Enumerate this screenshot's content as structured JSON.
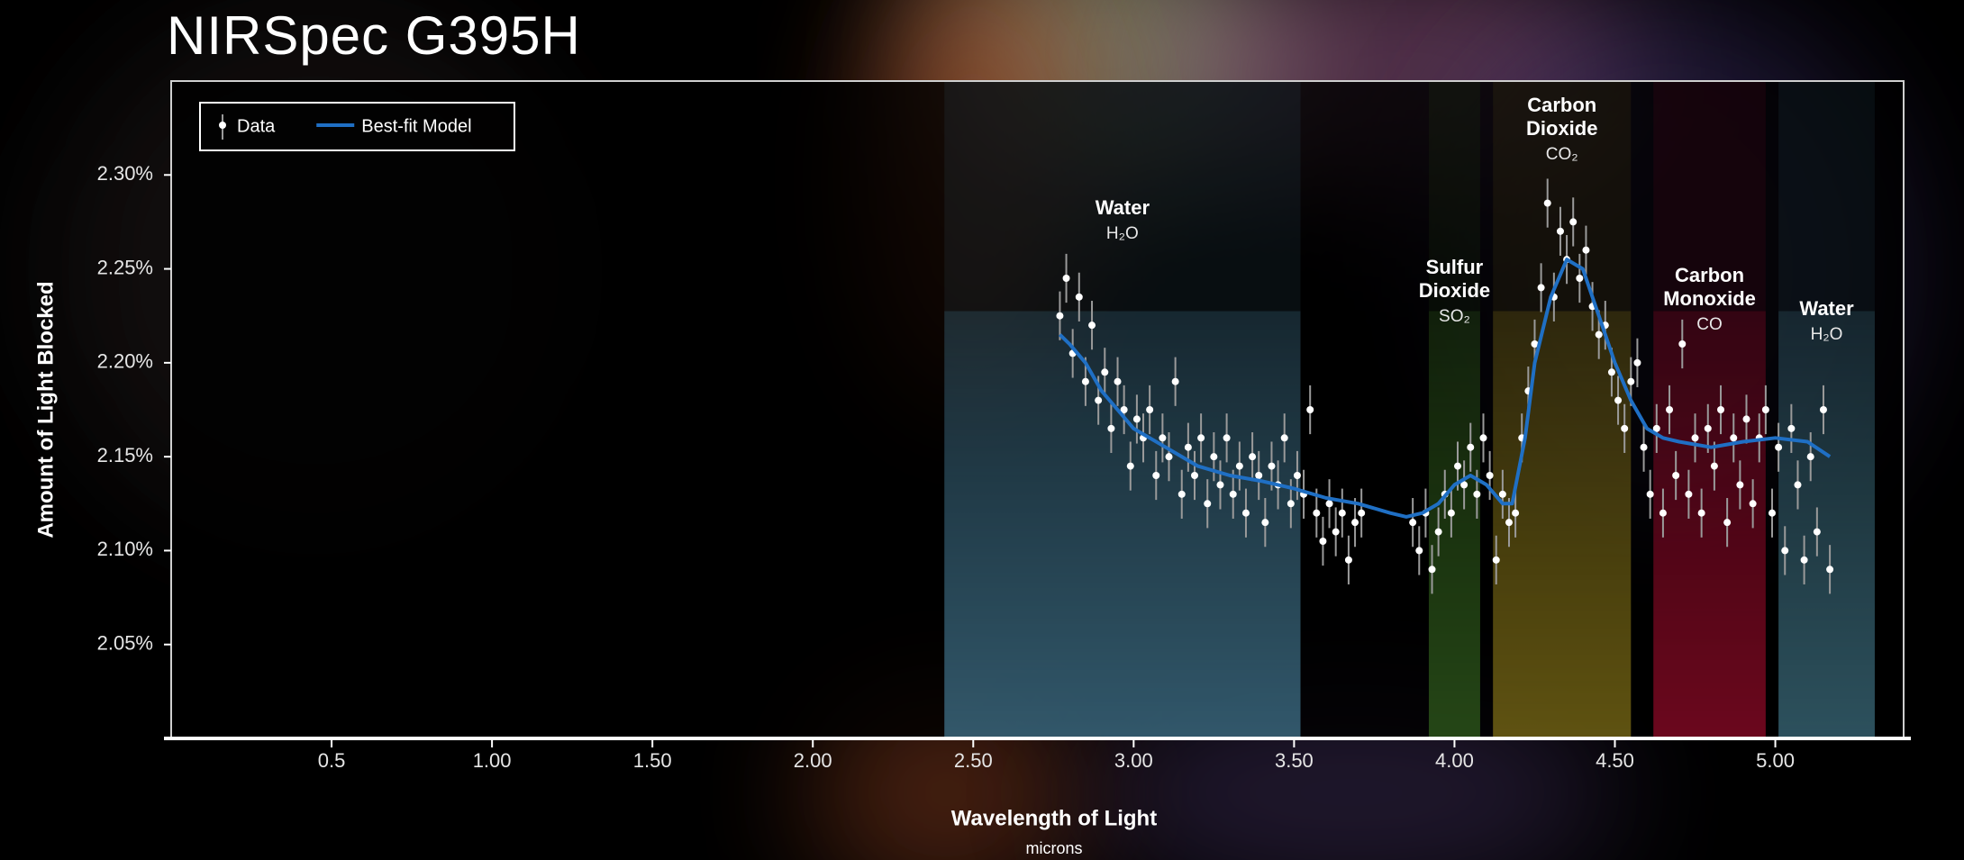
{
  "chart_data": {
    "type": "scatter",
    "title": "NIRSpec G395H",
    "ylabel": "Amount of Light Blocked",
    "xlabel": "Wavelength of Light",
    "xlabel_unit": "microns",
    "xlim": [
      0,
      5.4
    ],
    "ylim": [
      2.0,
      2.35
    ],
    "xticks": [
      0.5,
      {
        "value": 1,
        "label": "1.00"
      },
      {
        "value": 1.5,
        "label": "1.50"
      },
      {
        "value": 2,
        "label": "2.00"
      },
      {
        "value": 2.5,
        "label": "2.50"
      },
      {
        "value": 3,
        "label": "3.00"
      },
      {
        "value": 3.5,
        "label": "3.50"
      },
      {
        "value": 4,
        "label": "4.00"
      },
      {
        "value": 4.5,
        "label": "4.50"
      },
      {
        "value": 5,
        "label": "5.00"
      }
    ],
    "yticks": [
      {
        "value": 2.05,
        "label": "2.05%"
      },
      {
        "value": 2.1,
        "label": "2.10%"
      },
      {
        "value": 2.15,
        "label": "2.15%"
      },
      {
        "value": 2.2,
        "label": "2.20%"
      },
      {
        "value": 2.25,
        "label": "2.25%"
      },
      {
        "value": 2.3,
        "label": "2.30%"
      }
    ],
    "legend": "upper left",
    "bands": [
      {
        "range": [
          2.41,
          3.52
        ],
        "color": "#3f7088",
        "label": [
          "Water"
        ],
        "formula": "H₂O"
      },
      {
        "range": [
          3.92,
          4.08
        ],
        "color": "#2f5a1c",
        "label": [
          "Sulfur",
          "Dioxide"
        ],
        "formula": "SO₂"
      },
      {
        "range": [
          4.12,
          4.55
        ],
        "color": "#7a6a16",
        "label": [
          "Carbon",
          "Dioxide"
        ],
        "formula": "CO₂"
      },
      {
        "range": [
          4.62,
          4.97
        ],
        "color": "#8a0a26",
        "label": [
          "Carbon",
          "Monoxide"
        ],
        "formula": "CO"
      },
      {
        "range": [
          5.01,
          5.31
        ],
        "color": "#3a6878",
        "label": [
          "Water"
        ],
        "formula": "H₂O"
      }
    ],
    "series": [
      {
        "name": "Data",
        "type": "errorbar",
        "color": "#ffffff",
        "error": 0.013,
        "x": [
          2.77,
          2.79,
          2.81,
          2.83,
          2.85,
          2.87,
          2.89,
          2.91,
          2.93,
          2.95,
          2.97,
          2.99,
          3.01,
          3.03,
          3.05,
          3.07,
          3.09,
          3.11,
          3.13,
          3.15,
          3.17,
          3.19,
          3.21,
          3.23,
          3.25,
          3.27,
          3.29,
          3.31,
          3.33,
          3.35,
          3.37,
          3.39,
          3.41,
          3.43,
          3.45,
          3.47,
          3.49,
          3.51,
          3.53,
          3.55,
          3.57,
          3.59,
          3.61,
          3.63,
          3.65,
          3.67,
          3.69,
          3.71,
          3.87,
          3.89,
          3.91,
          3.93,
          3.95,
          3.97,
          3.99,
          4.01,
          4.03,
          4.05,
          4.07,
          4.09,
          4.11,
          4.13,
          4.15,
          4.17,
          4.19,
          4.21,
          4.23,
          4.25,
          4.27,
          4.29,
          4.31,
          4.33,
          4.35,
          4.37,
          4.39,
          4.41,
          4.43,
          4.45,
          4.47,
          4.49,
          4.51,
          4.53,
          4.55,
          4.57,
          4.59,
          4.61,
          4.63,
          4.65,
          4.67,
          4.69,
          4.71,
          4.73,
          4.75,
          4.77,
          4.79,
          4.81,
          4.83,
          4.85,
          4.87,
          4.89,
          4.91,
          4.93,
          4.95,
          4.97,
          4.99,
          5.01,
          5.03,
          5.05,
          5.07,
          5.09,
          5.11,
          5.13,
          5.15,
          5.17
        ],
        "values": [
          2.225,
          2.245,
          2.205,
          2.235,
          2.19,
          2.22,
          2.18,
          2.195,
          2.165,
          2.19,
          2.175,
          2.145,
          2.17,
          2.16,
          2.175,
          2.14,
          2.16,
          2.15,
          2.19,
          2.13,
          2.155,
          2.14,
          2.16,
          2.125,
          2.15,
          2.135,
          2.16,
          2.13,
          2.145,
          2.12,
          2.15,
          2.14,
          2.115,
          2.145,
          2.135,
          2.16,
          2.125,
          2.14,
          2.13,
          2.175,
          2.12,
          2.105,
          2.125,
          2.11,
          2.12,
          2.095,
          2.115,
          2.12,
          2.115,
          2.1,
          2.12,
          2.09,
          2.11,
          2.13,
          2.12,
          2.145,
          2.135,
          2.155,
          2.13,
          2.16,
          2.14,
          2.095,
          2.13,
          2.115,
          2.12,
          2.16,
          2.185,
          2.21,
          2.24,
          2.285,
          2.235,
          2.27,
          2.255,
          2.275,
          2.245,
          2.26,
          2.23,
          2.215,
          2.22,
          2.195,
          2.18,
          2.165,
          2.19,
          2.2,
          2.155,
          2.13,
          2.165,
          2.12,
          2.175,
          2.14,
          2.21,
          2.13,
          2.16,
          2.12,
          2.165,
          2.145,
          2.175,
          2.115,
          2.16,
          2.135,
          2.17,
          2.125,
          2.16,
          2.175,
          2.12,
          2.155,
          2.1,
          2.165,
          2.135,
          2.095,
          2.15,
          2.11,
          2.175,
          2.09
        ]
      },
      {
        "name": "Best-fit Model",
        "type": "line",
        "color": "#1f6fc4",
        "x": [
          2.77,
          2.8,
          2.85,
          2.9,
          2.95,
          3.0,
          3.05,
          3.1,
          3.2,
          3.3,
          3.4,
          3.5,
          3.6,
          3.7,
          3.8,
          3.85,
          3.9,
          3.95,
          4.0,
          4.05,
          4.1,
          4.15,
          4.18,
          4.22,
          4.25,
          4.3,
          4.35,
          4.4,
          4.45,
          4.5,
          4.55,
          4.6,
          4.65,
          4.7,
          4.8,
          4.9,
          5.0,
          5.1,
          5.17
        ],
        "values": [
          2.215,
          2.21,
          2.2,
          2.185,
          2.175,
          2.165,
          2.16,
          2.155,
          2.145,
          2.14,
          2.137,
          2.133,
          2.128,
          2.125,
          2.12,
          2.118,
          2.12,
          2.125,
          2.135,
          2.14,
          2.135,
          2.125,
          2.125,
          2.16,
          2.2,
          2.235,
          2.255,
          2.25,
          2.225,
          2.2,
          2.18,
          2.165,
          2.16,
          2.158,
          2.155,
          2.158,
          2.16,
          2.158,
          2.15
        ]
      }
    ]
  }
}
